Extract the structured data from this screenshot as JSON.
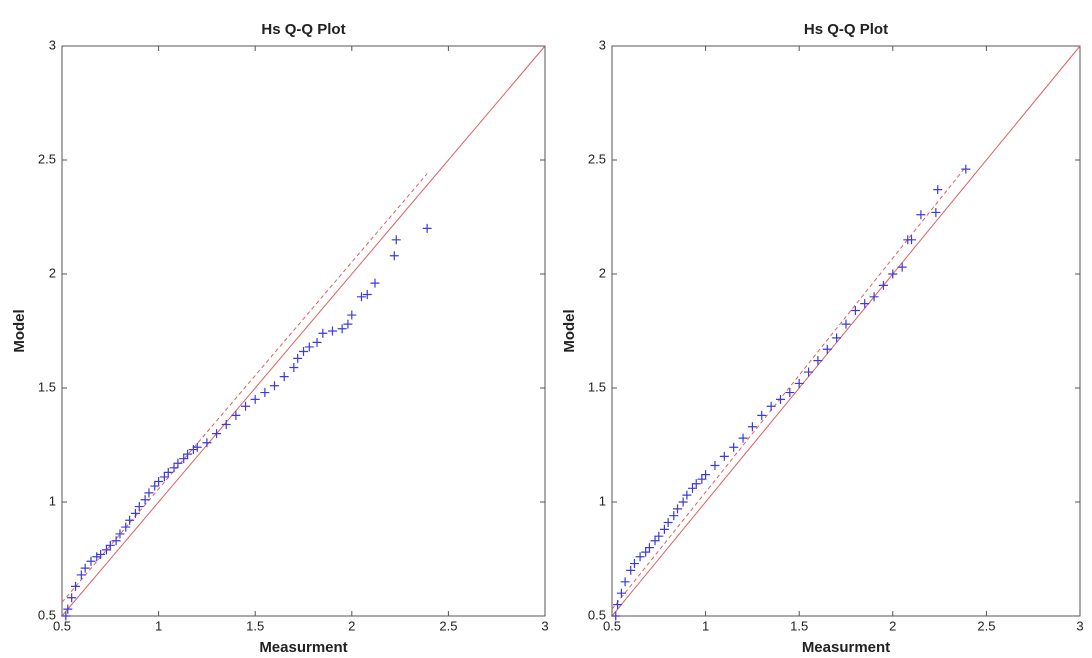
{
  "chart_data": [
    {
      "type": "scatter",
      "title": "Hs Q-Q Plot",
      "x_label": "Measurment",
      "y_label": "Model",
      "color": "#3b3bd9",
      "x": [
        0.52,
        0.53,
        0.55,
        0.57,
        0.6,
        0.62,
        0.65,
        0.68,
        0.7,
        0.73,
        0.75,
        0.78,
        0.8,
        0.83,
        0.85,
        0.88,
        0.9,
        0.93,
        0.95,
        0.98,
        1.0,
        1.03,
        1.05,
        1.08,
        1.1,
        1.13,
        1.15,
        1.18,
        1.2,
        1.25,
        1.3,
        1.35,
        1.4,
        1.45,
        1.5,
        1.55,
        1.6,
        1.65,
        1.7,
        1.72,
        1.75,
        1.78,
        1.82,
        1.85,
        1.9,
        1.95,
        1.98,
        2.0,
        2.05,
        2.08,
        2.12,
        2.22,
        2.23,
        2.39
      ],
      "values": [
        0.5,
        0.53,
        0.58,
        0.63,
        0.68,
        0.71,
        0.74,
        0.76,
        0.77,
        0.79,
        0.81,
        0.83,
        0.86,
        0.89,
        0.92,
        0.95,
        0.98,
        1.01,
        1.04,
        1.07,
        1.09,
        1.11,
        1.13,
        1.15,
        1.17,
        1.19,
        1.21,
        1.23,
        1.24,
        1.26,
        1.3,
        1.34,
        1.38,
        1.42,
        1.45,
        1.48,
        1.51,
        1.55,
        1.59,
        1.63,
        1.66,
        1.68,
        1.7,
        1.74,
        1.75,
        1.76,
        1.78,
        1.82,
        1.9,
        1.91,
        1.96,
        2.08,
        2.15,
        2.2
      ],
      "lines": [
        {
          "x": [
            0.5,
            3
          ],
          "y": [
            0.5,
            3
          ],
          "color": "#e06060",
          "dash": false
        },
        {
          "x": [
            0.5,
            2.39
          ],
          "y": [
            0.56,
            2.44
          ],
          "color": "#e06060",
          "dash": true
        }
      ],
      "xlim": [
        0.5,
        3
      ],
      "ylim": [
        0.5,
        3
      ],
      "xticks": [
        0.5,
        1,
        1.5,
        2,
        2.5,
        3
      ],
      "yticks": [
        0.5,
        1,
        1.5,
        2,
        2.5,
        3
      ]
    },
    {
      "type": "scatter",
      "title": "Hs Q-Q Plot",
      "x_label": "Measurment",
      "y_label": "Model",
      "color": "#3b3bd9",
      "x": [
        0.52,
        0.53,
        0.55,
        0.57,
        0.6,
        0.62,
        0.65,
        0.68,
        0.7,
        0.73,
        0.75,
        0.78,
        0.8,
        0.83,
        0.85,
        0.88,
        0.9,
        0.93,
        0.95,
        0.98,
        1.0,
        1.05,
        1.1,
        1.15,
        1.2,
        1.25,
        1.3,
        1.35,
        1.4,
        1.45,
        1.5,
        1.55,
        1.6,
        1.65,
        1.7,
        1.75,
        1.8,
        1.85,
        1.9,
        1.95,
        2.0,
        2.05,
        2.08,
        2.1,
        2.15,
        2.23,
        2.24,
        2.39
      ],
      "values": [
        0.5,
        0.55,
        0.6,
        0.65,
        0.7,
        0.73,
        0.76,
        0.78,
        0.8,
        0.83,
        0.85,
        0.88,
        0.91,
        0.94,
        0.97,
        1.0,
        1.03,
        1.06,
        1.08,
        1.1,
        1.12,
        1.16,
        1.2,
        1.24,
        1.28,
        1.33,
        1.38,
        1.42,
        1.45,
        1.48,
        1.52,
        1.57,
        1.62,
        1.67,
        1.72,
        1.78,
        1.84,
        1.87,
        1.9,
        1.95,
        2.0,
        2.03,
        2.15,
        2.15,
        2.26,
        2.27,
        2.37,
        2.46
      ],
      "lines": [
        {
          "x": [
            0.5,
            3
          ],
          "y": [
            0.5,
            3
          ],
          "color": "#e06060",
          "dash": false
        },
        {
          "x": [
            0.5,
            2.39
          ],
          "y": [
            0.53,
            2.47
          ],
          "color": "#e06060",
          "dash": true
        }
      ],
      "xlim": [
        0.5,
        3
      ],
      "ylim": [
        0.5,
        3
      ],
      "xticks": [
        0.5,
        1,
        1.5,
        2,
        2.5,
        3
      ],
      "yticks": [
        0.5,
        1,
        1.5,
        2,
        2.5,
        3
      ]
    }
  ]
}
